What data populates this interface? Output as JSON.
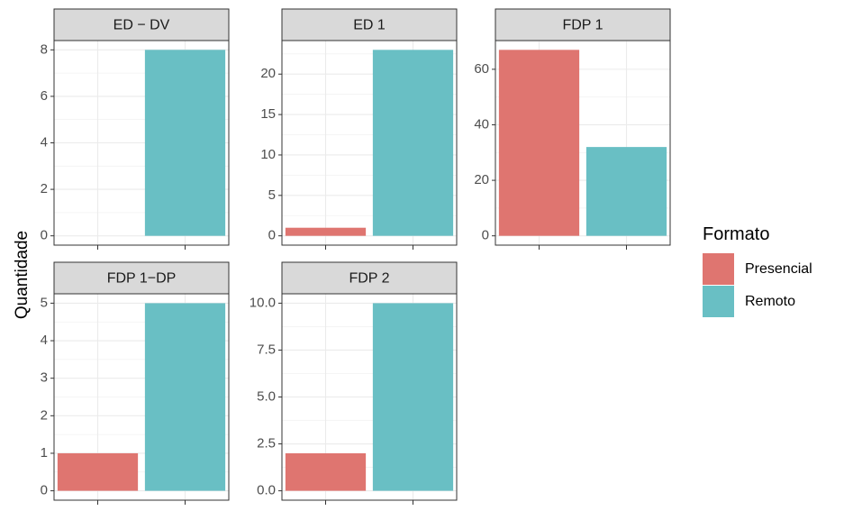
{
  "chart_data": {
    "type": "bar",
    "ylabel": "Quantidade",
    "legend": {
      "title": "Formato",
      "position": "right",
      "entries": [
        {
          "name": "Presencial",
          "color": "#DF7570"
        },
        {
          "name": "Remoto",
          "color": "#69BFC4"
        }
      ]
    },
    "facets": [
      {
        "title": "ED − DV",
        "ylim": [
          -0.4,
          8.4
        ],
        "yticks": [
          0,
          2,
          4,
          6,
          8
        ],
        "ytick_labels": [
          "0",
          "2",
          "4",
          "6",
          "8"
        ],
        "bars": [
          {
            "series": "Remoto",
            "value": 8
          }
        ]
      },
      {
        "title": "ED 1",
        "ylim": [
          -1.15,
          24.15
        ],
        "yticks": [
          0,
          5,
          10,
          15,
          20
        ],
        "ytick_labels": [
          "0",
          "5",
          "10",
          "15",
          "20"
        ],
        "bars": [
          {
            "series": "Presencial",
            "value": 1
          },
          {
            "series": "Remoto",
            "value": 23
          }
        ]
      },
      {
        "title": "FDP 1",
        "ylim": [
          -3.35,
          70.35
        ],
        "yticks": [
          0,
          20,
          40,
          60
        ],
        "ytick_labels": [
          "0",
          "20",
          "40",
          "60"
        ],
        "bars": [
          {
            "series": "Presencial",
            "value": 67
          },
          {
            "series": "Remoto",
            "value": 32
          }
        ]
      },
      {
        "title": "FDP 1−DP",
        "ylim": [
          -0.25,
          5.25
        ],
        "yticks": [
          0,
          1,
          2,
          3,
          4,
          5
        ],
        "ytick_labels": [
          "0",
          "1",
          "2",
          "3",
          "4",
          "5"
        ],
        "bars": [
          {
            "series": "Presencial",
            "value": 1
          },
          {
            "series": "Remoto",
            "value": 5
          }
        ]
      },
      {
        "title": "FDP 2",
        "ylim": [
          -0.5,
          10.5
        ],
        "yticks": [
          0,
          2.5,
          5,
          7.5,
          10
        ],
        "ytick_labels": [
          "0.0",
          "2.5",
          "5.0",
          "7.5",
          "10.0"
        ],
        "bars": [
          {
            "series": "Presencial",
            "value": 2
          },
          {
            "series": "Remoto",
            "value": 10
          }
        ]
      }
    ],
    "grid": true
  }
}
